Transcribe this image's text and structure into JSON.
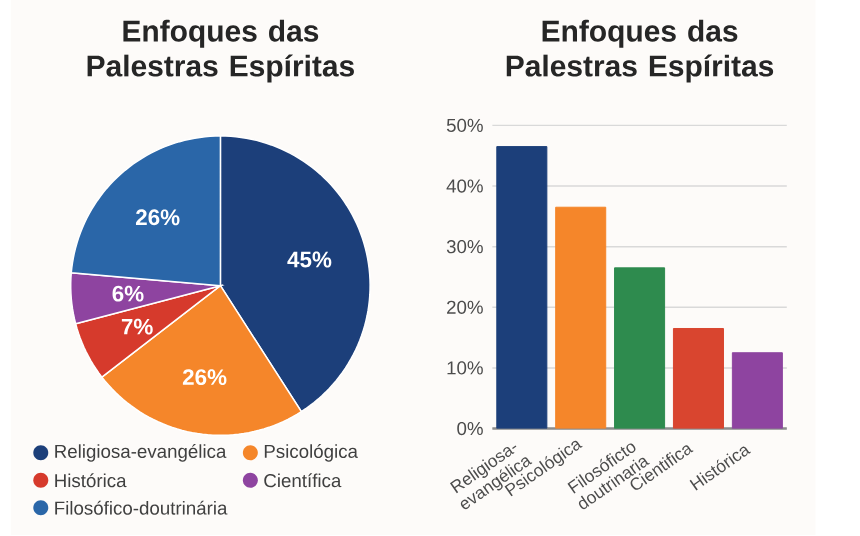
{
  "chart_data": [
    {
      "type": "pie",
      "title": "Enfoques das Palestras Espíritas",
      "legend": "bottom",
      "categories": [
        "Religiosa-evangélica",
        "Psicológica",
        "Histórica",
        "Científica",
        "Filosófico-doutrinária"
      ],
      "values": [
        45,
        26,
        7,
        6,
        26
      ],
      "value_labels": [
        "45%",
        "26%",
        "7%",
        "6%",
        "26%"
      ],
      "colors": [
        "#1c3f7a",
        "#f5862a",
        "#d63a2c",
        "#8e44a0",
        "#2a66a8"
      ]
    },
    {
      "type": "bar",
      "title": "Enfoques das Palestras Espíritas",
      "grid": "y",
      "categories": [
        "Religiosa-evangélica",
        "Psicológica",
        "Filosóficto doutrinaria",
        "Cientifica",
        "Histórica"
      ],
      "values": [
        46.5,
        36.5,
        26.5,
        16.5,
        12.5
      ],
      "colors": [
        "#1c3f7a",
        "#f5862a",
        "#2e8b4e",
        "#d9452f",
        "#8e44a0"
      ],
      "ylim": [
        0,
        50
      ],
      "yticks": [
        {
          "value": 0,
          "label": "0%"
        },
        {
          "value": 10,
          "label": "10%"
        },
        {
          "value": 20,
          "label": "20%"
        },
        {
          "value": 30,
          "label": "30%"
        },
        {
          "value": 40,
          "label": "40%"
        },
        {
          "value": 50,
          "label": "50%"
        }
      ]
    }
  ]
}
